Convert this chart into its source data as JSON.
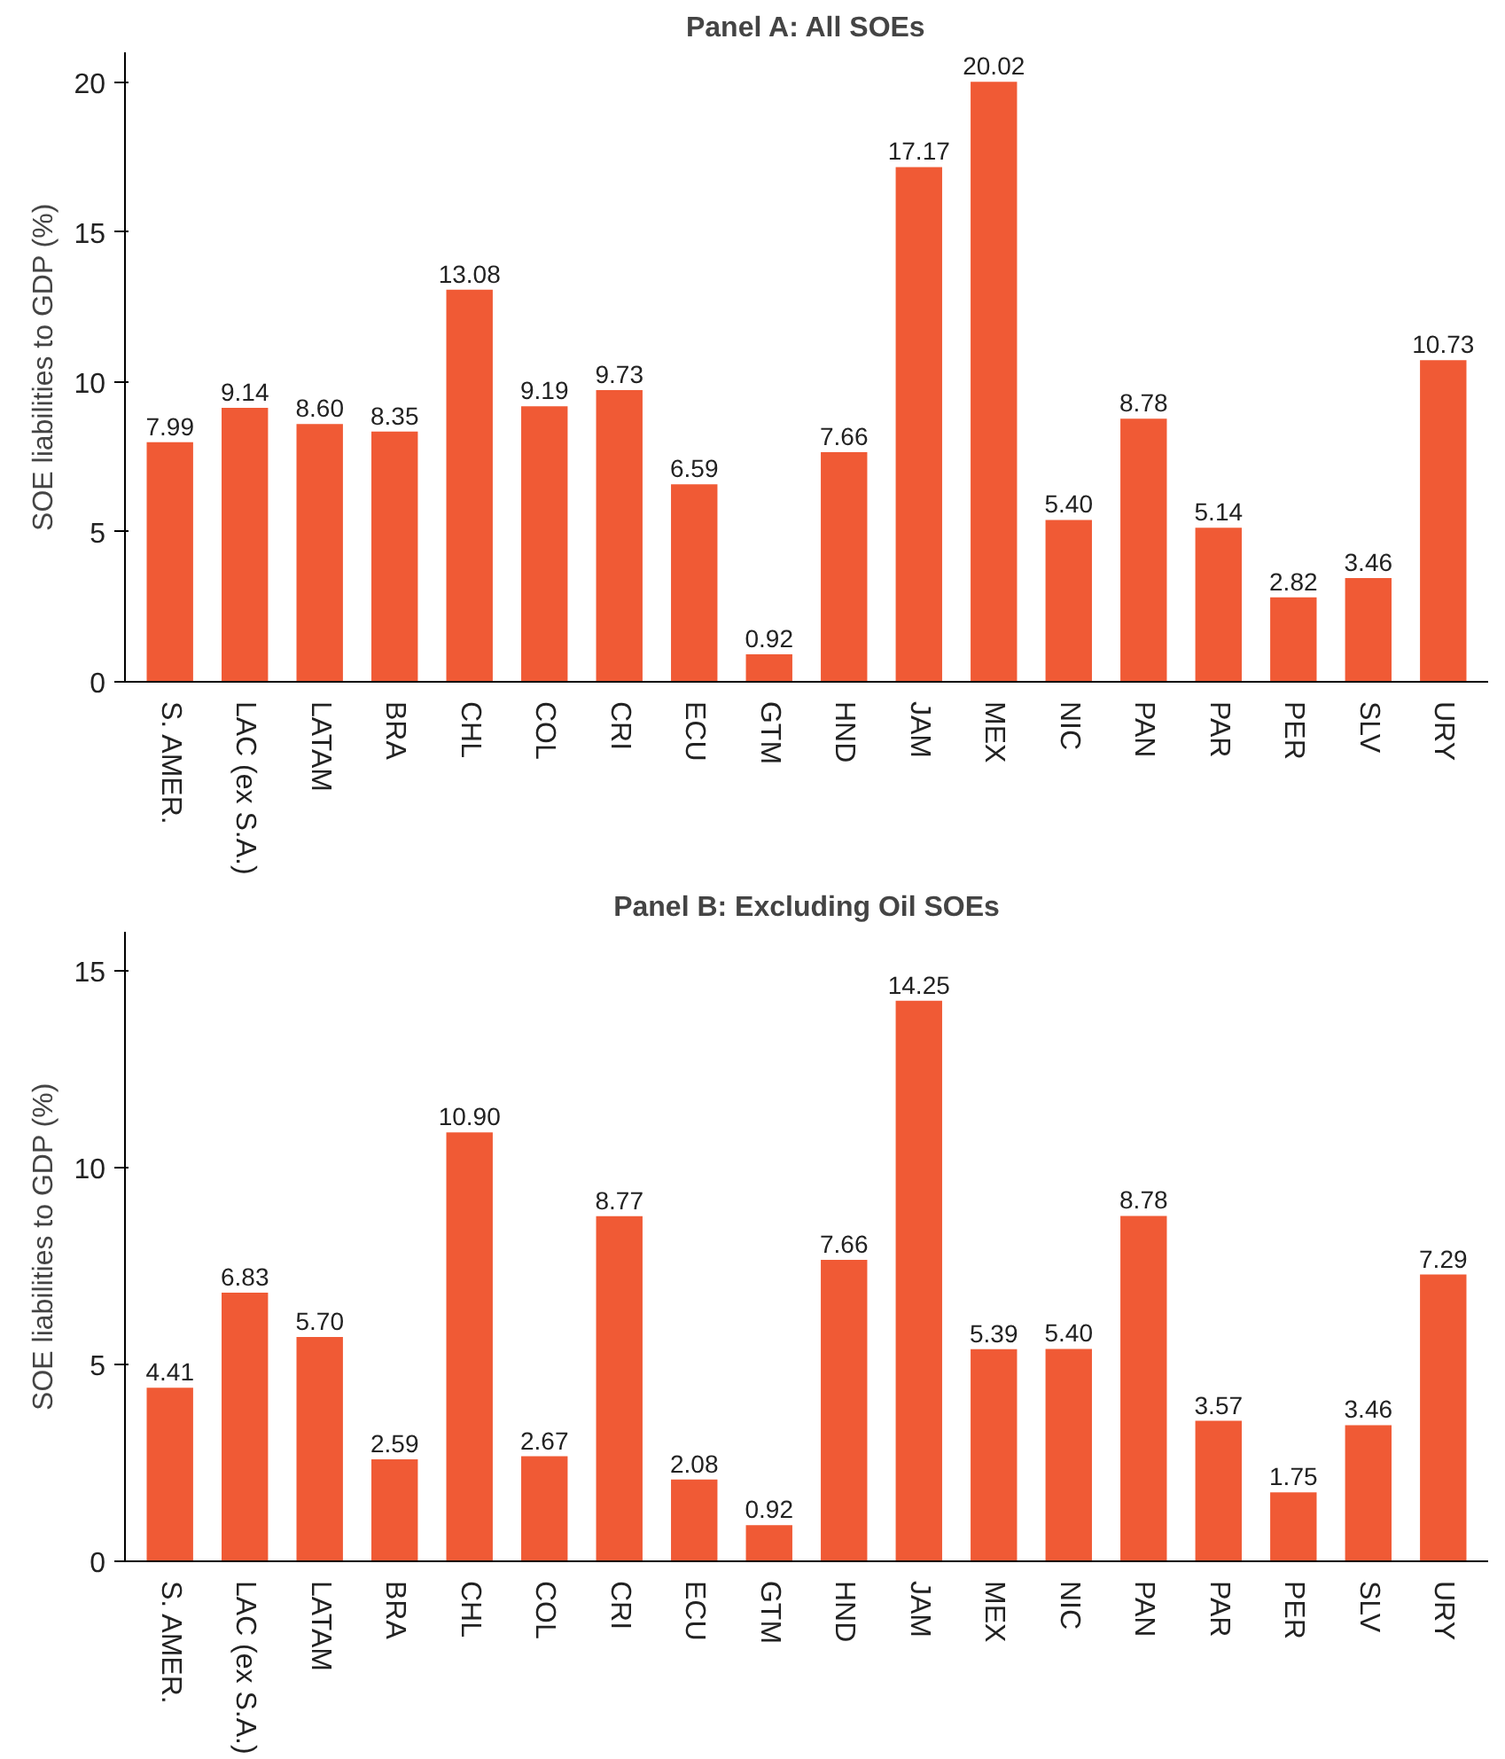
{
  "chart_data": [
    {
      "type": "bar",
      "title": "Panel A: All SOEs",
      "ylabel": "SOE liabilities to GDP (%)",
      "categories": [
        "S. AMER.",
        "LAC (ex S.A.)",
        "LATAM",
        "BRA",
        "CHL",
        "COL",
        "CRI",
        "ECU",
        "GTM",
        "HND",
        "JAM",
        "MEX",
        "NIC",
        "PAN",
        "PAR",
        "PER",
        "SLV",
        "URY"
      ],
      "values": [
        7.99,
        9.14,
        8.6,
        8.35,
        13.08,
        9.19,
        9.73,
        6.59,
        0.92,
        7.66,
        17.17,
        20.02,
        5.4,
        8.78,
        5.14,
        2.82,
        3.46,
        10.73
      ],
      "value_labels": [
        "7.99",
        "9.14",
        "8.60",
        "8.35",
        "13.08",
        "9.19",
        "9.73",
        "6.59",
        "0.92",
        "7.66",
        "17.17",
        "20.02",
        "5.40",
        "8.78",
        "5.14",
        "2.82",
        "3.46",
        "10.73"
      ],
      "color": "#f05a35",
      "ylim": [
        0,
        21
      ],
      "yticks": [
        0,
        5,
        10,
        15,
        20
      ],
      "grid": false,
      "legend": false
    },
    {
      "type": "bar",
      "title": "Panel B: Excluding Oil SOEs",
      "ylabel": "SOE liabilities to GDP (%)",
      "categories": [
        "S. AMER.",
        "LAC (ex S.A.)",
        "LATAM",
        "BRA",
        "CHL",
        "COL",
        "CRI",
        "ECU",
        "GTM",
        "HND",
        "JAM",
        "MEX",
        "NIC",
        "PAN",
        "PAR",
        "PER",
        "SLV",
        "URY"
      ],
      "values": [
        4.41,
        6.83,
        5.7,
        2.59,
        10.9,
        2.67,
        8.77,
        2.08,
        0.92,
        7.66,
        14.25,
        5.39,
        5.4,
        8.78,
        3.57,
        1.75,
        3.46,
        7.29
      ],
      "value_labels": [
        "4.41",
        "6.83",
        "5.70",
        "2.59",
        "10.90",
        "2.67",
        "8.77",
        "2.08",
        "0.92",
        "7.66",
        "14.25",
        "5.39",
        "5.40",
        "8.78",
        "3.57",
        "1.75",
        "3.46",
        "7.29"
      ],
      "color": "#f05a35",
      "ylim": [
        0,
        16
      ],
      "yticks": [
        0,
        5,
        10,
        15
      ],
      "grid": false,
      "legend": false
    }
  ]
}
